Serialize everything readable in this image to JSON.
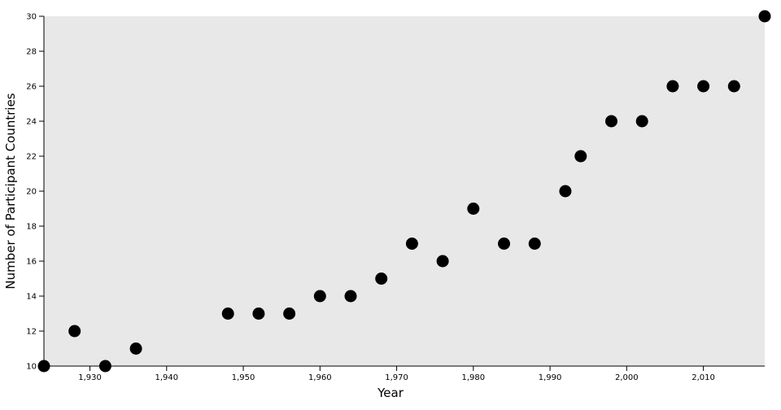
{
  "chart_data": {
    "type": "scatter",
    "title": "",
    "xlabel": "Year",
    "ylabel": "Number of Participant Countries",
    "xlim": [
      1924,
      2018
    ],
    "ylim": [
      10,
      30
    ],
    "x_ticks": [
      1930,
      1940,
      1950,
      1960,
      1970,
      1980,
      1990,
      2000,
      2010
    ],
    "x_tick_labels": [
      "1,930",
      "1,940",
      "1,950",
      "1,960",
      "1,970",
      "1,980",
      "1,990",
      "2,000",
      "2,010"
    ],
    "y_ticks": [
      10,
      12,
      14,
      16,
      18,
      20,
      22,
      24,
      26,
      28,
      30
    ],
    "y_tick_labels": [
      "10",
      "12",
      "14",
      "16",
      "18",
      "20",
      "22",
      "24",
      "26",
      "28",
      "30"
    ],
    "grid": false,
    "colors": {
      "background": "#e8e8e8",
      "point": "#000000"
    },
    "points": [
      {
        "x": 1924,
        "y": 10
      },
      {
        "x": 1928,
        "y": 12
      },
      {
        "x": 1932,
        "y": 10
      },
      {
        "x": 1936,
        "y": 11
      },
      {
        "x": 1948,
        "y": 13
      },
      {
        "x": 1952,
        "y": 13
      },
      {
        "x": 1956,
        "y": 13
      },
      {
        "x": 1960,
        "y": 14
      },
      {
        "x": 1964,
        "y": 14
      },
      {
        "x": 1968,
        "y": 15
      },
      {
        "x": 1972,
        "y": 17
      },
      {
        "x": 1976,
        "y": 16
      },
      {
        "x": 1980,
        "y": 19
      },
      {
        "x": 1984,
        "y": 17
      },
      {
        "x": 1988,
        "y": 17
      },
      {
        "x": 1992,
        "y": 20
      },
      {
        "x": 1994,
        "y": 22
      },
      {
        "x": 1998,
        "y": 24
      },
      {
        "x": 2002,
        "y": 24
      },
      {
        "x": 2006,
        "y": 26
      },
      {
        "x": 2010,
        "y": 26
      },
      {
        "x": 2014,
        "y": 26
      },
      {
        "x": 2018,
        "y": 30
      }
    ]
  }
}
